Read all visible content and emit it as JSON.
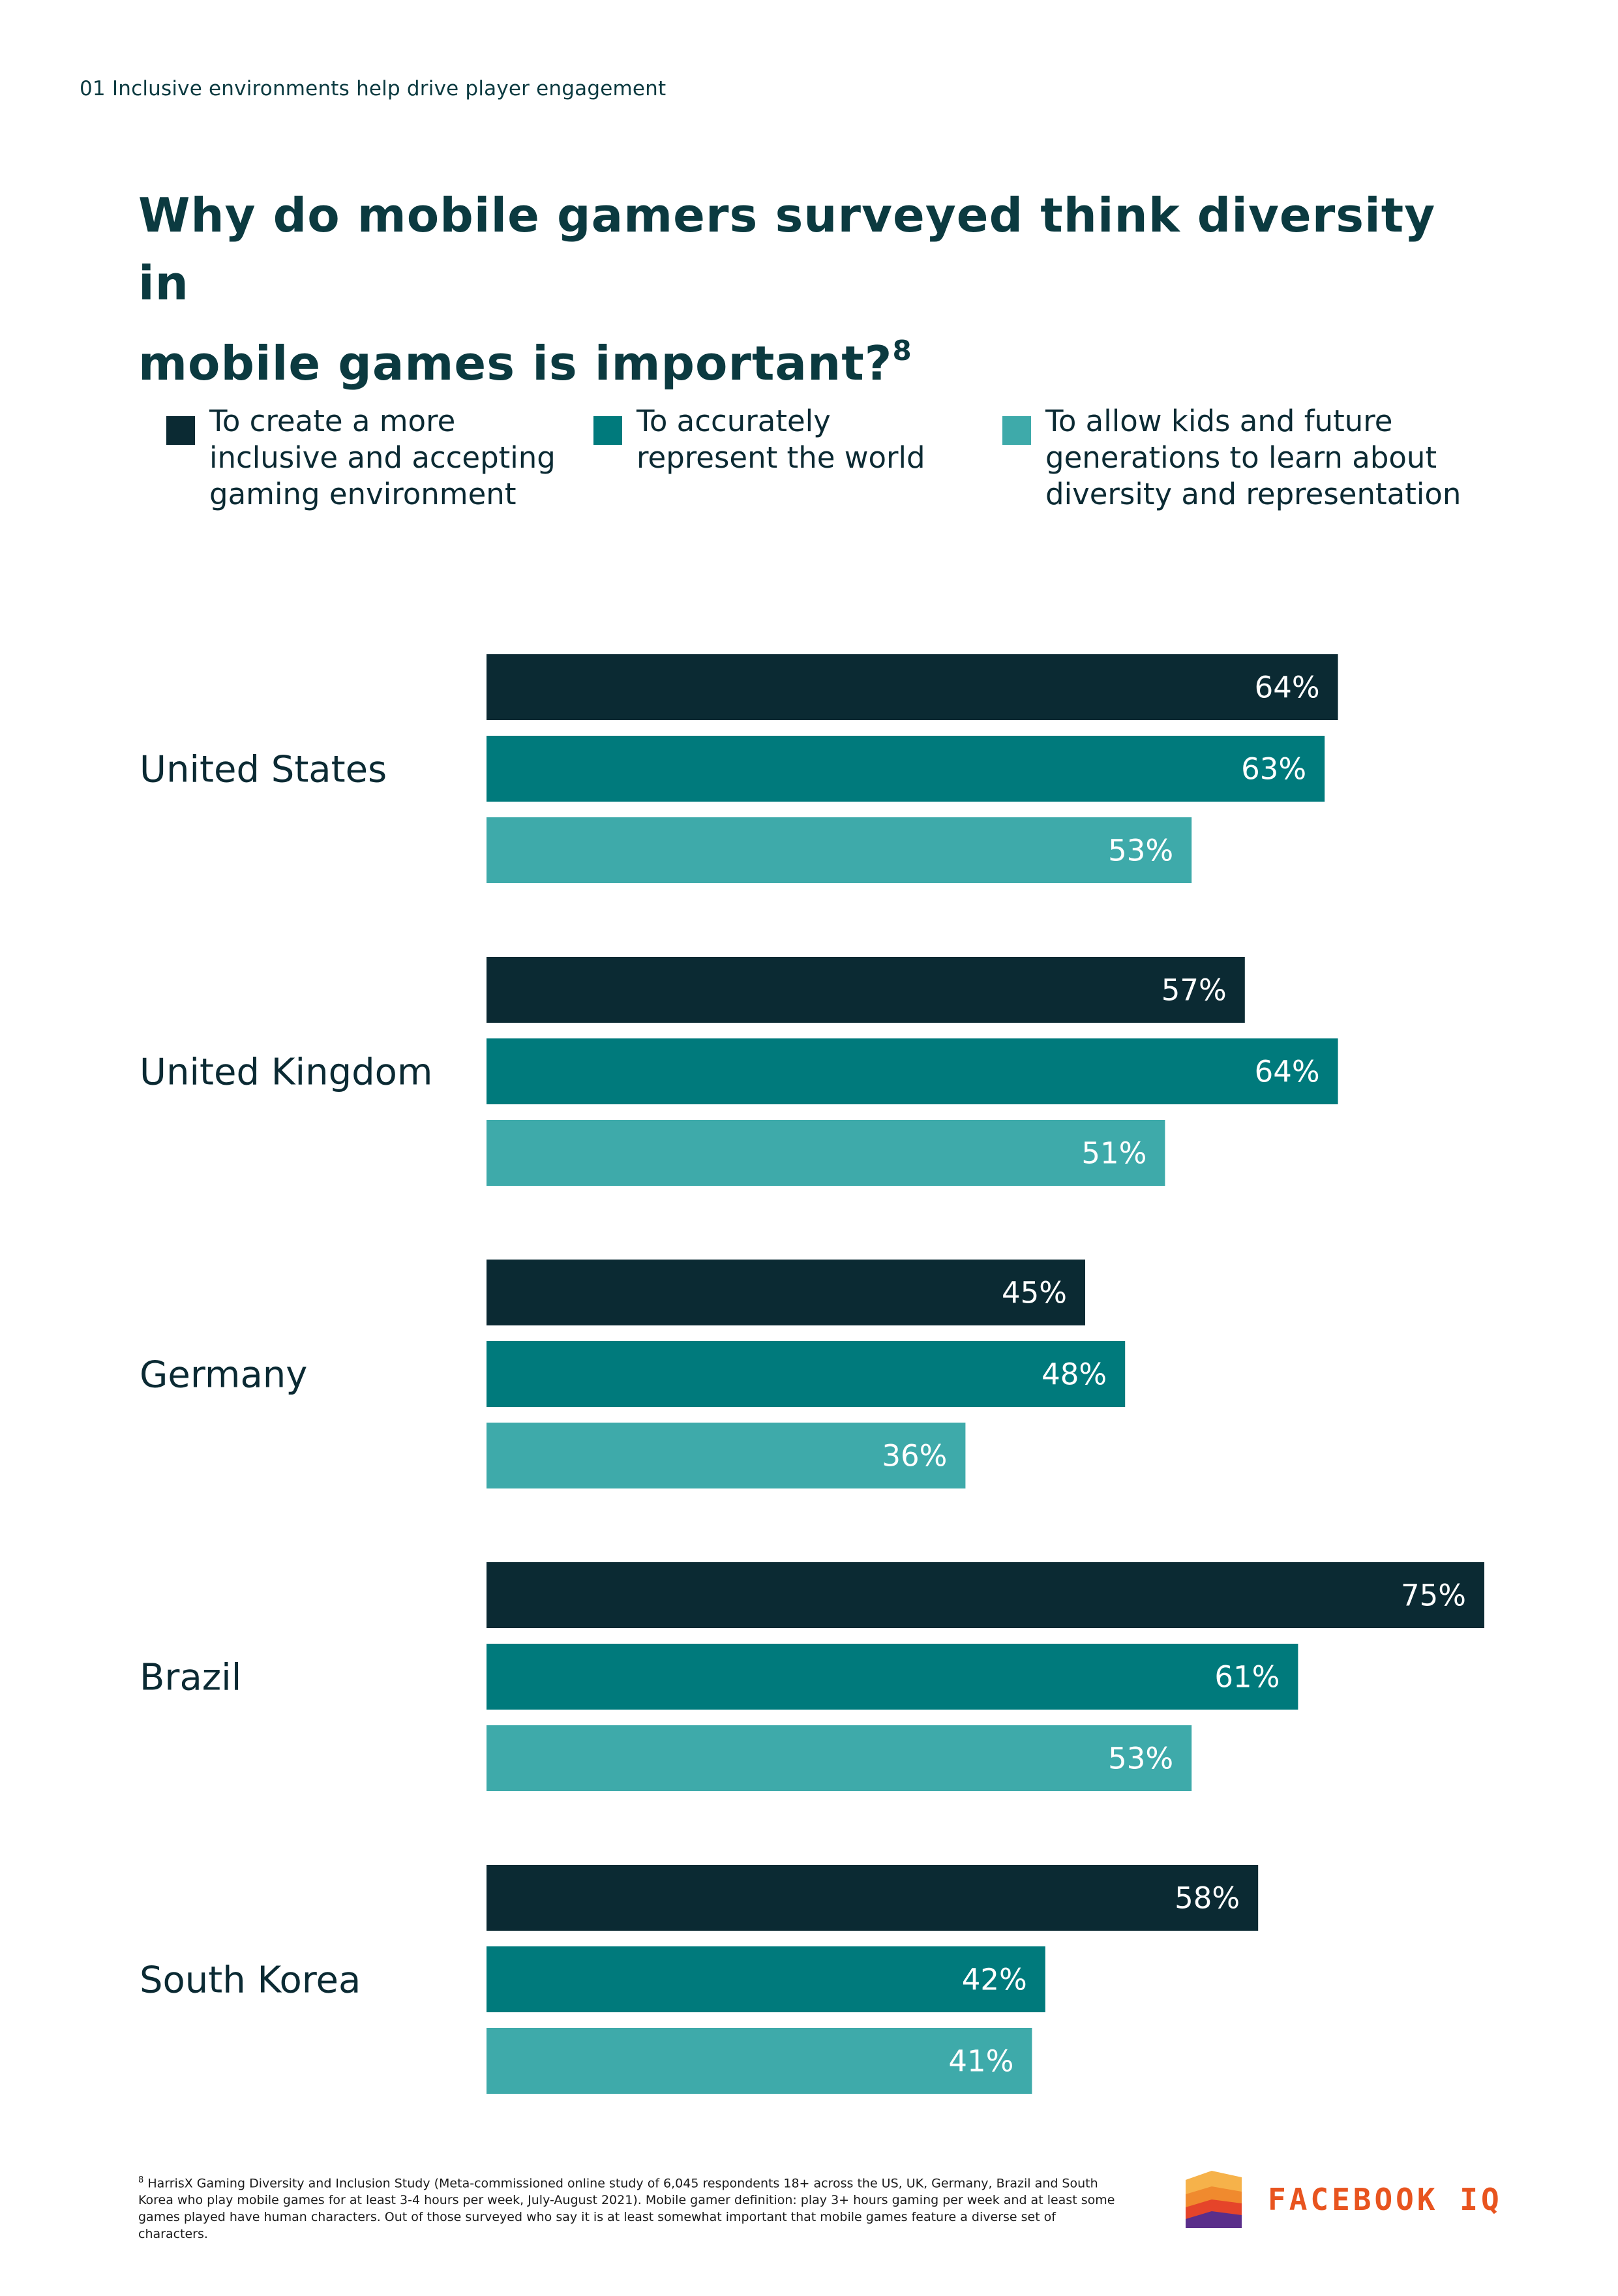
{
  "section_label": "01 Inclusive environments help drive player engagement",
  "title_line1": "Why do mobile gamers surveyed think diversity in",
  "title_line2": "mobile games is important?",
  "title_footnote_mark": "8",
  "colors": {
    "series1": "#0b2a33",
    "series2": "#007a7c",
    "series3": "#3eaaaa",
    "logo": "#e8541f"
  },
  "chart_data": {
    "type": "bar",
    "orientation": "horizontal",
    "title": "Why do mobile gamers surveyed think diversity in mobile games is important?",
    "categories": [
      "United States",
      "United Kingdom",
      "Germany",
      "Brazil",
      "South Korea"
    ],
    "series": [
      {
        "name": "To create a more\ninclusive and accepting\ngaming environment",
        "values": [
          64,
          57,
          45,
          75,
          58
        ],
        "color": "#0b2a33"
      },
      {
        "name": "To accurately\nrepresent the world",
        "values": [
          63,
          64,
          48,
          61,
          42
        ],
        "color": "#007a7c"
      },
      {
        "name": "To allow kids and future\ngenerations to learn about\ndiversity and representation",
        "values": [
          53,
          51,
          36,
          53,
          41
        ],
        "color": "#3eaaaa"
      }
    ],
    "value_suffix": "%",
    "xlim": [
      0,
      75
    ],
    "legend": "top",
    "grid": false
  },
  "footnote_mark": "8",
  "footnote": "HarrisX Gaming Diversity and Inclusion Study (Meta-commissioned online study of 6,045 respondents 18+ across the US, UK, Germany, Brazil and South Korea who play mobile games for at least 3-4 hours per week, July-August 2021). Mobile gamer definition: play 3+ hours gaming per week and at least some games played have human characters. Out of those surveyed who say it is at least somewhat important that mobile games feature a diverse set of characters.",
  "logo_text": "FACEBOOK IQ",
  "logo_icon": "facebook-iq-logo-icon"
}
